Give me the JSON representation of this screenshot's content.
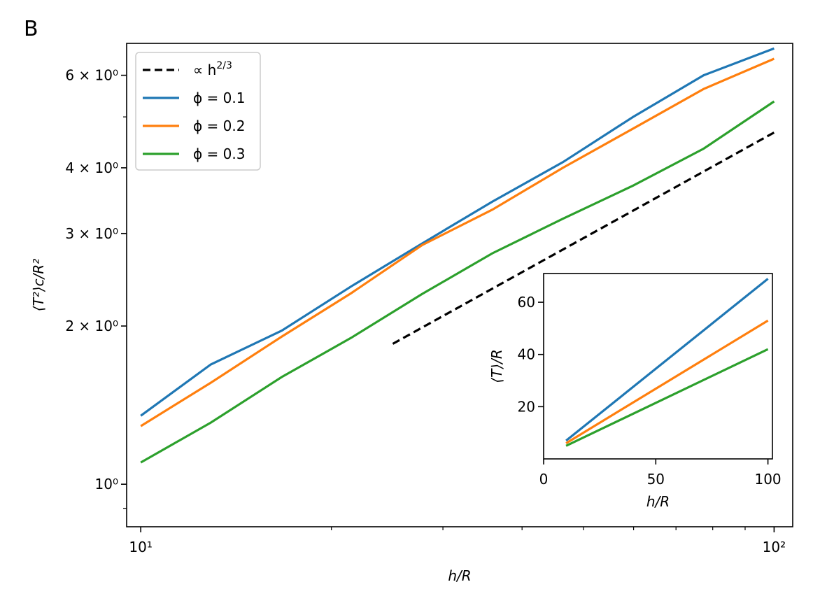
{
  "panel_label": "B",
  "chart_data": [
    {
      "type": "line",
      "title": "",
      "xlabel": "h/R",
      "ylabel": "⟨T²⟩c/R²",
      "xscale": "log",
      "yscale": "log",
      "xlim": [
        9.5,
        107
      ],
      "ylim": [
        0.83,
        6.9
      ],
      "x_ticks": [
        {
          "value": 10,
          "label": "10¹"
        },
        {
          "value": 100,
          "label": "10²"
        }
      ],
      "y_ticks": [
        {
          "value": 1,
          "label": "10⁰"
        },
        {
          "value": 2,
          "label": "2 × 10⁰"
        },
        {
          "value": 3,
          "label": "3 × 10⁰"
        },
        {
          "value": 4,
          "label": "4 × 10⁰"
        },
        {
          "value": 6,
          "label": "6 × 10⁰"
        }
      ],
      "grid": false,
      "legend_position": "upper-left",
      "series": [
        {
          "name": "∝ h^2/3",
          "legend_label": "∝ h",
          "legend_superscript": "2/3",
          "style": "dashed",
          "color": "#000000",
          "x": [
            25,
            100
          ],
          "y": [
            1.85,
            4.67
          ]
        },
        {
          "name": "ϕ = 0.1",
          "color": "#1f77b4",
          "x": [
            10,
            12.9,
            16.7,
            21.5,
            27.8,
            35.9,
            46.4,
            59.9,
            77.4,
            100
          ],
          "y": [
            1.35,
            1.69,
            1.96,
            2.38,
            2.87,
            3.45,
            4.1,
            5.0,
            6.0,
            6.75
          ]
        },
        {
          "name": "ϕ = 0.2",
          "color": "#ff7f0e",
          "x": [
            10,
            12.9,
            16.7,
            21.5,
            27.8,
            35.9,
            46.4,
            59.9,
            77.4,
            100
          ],
          "y": [
            1.29,
            1.56,
            1.91,
            2.31,
            2.85,
            3.33,
            4.0,
            4.75,
            5.65,
            6.45
          ]
        },
        {
          "name": "ϕ = 0.3",
          "color": "#2ca02c",
          "x": [
            10,
            12.9,
            16.7,
            21.5,
            27.8,
            35.9,
            46.4,
            59.9,
            77.4,
            100
          ],
          "y": [
            1.1,
            1.31,
            1.6,
            1.9,
            2.3,
            2.75,
            3.2,
            3.7,
            4.35,
            5.35
          ]
        }
      ]
    },
    {
      "type": "line",
      "title": "",
      "xlabel": "h/R",
      "ylabel": "⟨T⟩/R",
      "xscale": "linear",
      "yscale": "linear",
      "xlim": [
        0,
        102
      ],
      "ylim": [
        0,
        71
      ],
      "x_ticks": [
        0,
        50,
        100
      ],
      "y_ticks": [
        20,
        40,
        60
      ],
      "series": [
        {
          "name": "ϕ = 0.1",
          "color": "#1f77b4",
          "x": [
            10,
            100
          ],
          "y": [
            7,
            69
          ]
        },
        {
          "name": "ϕ = 0.2",
          "color": "#ff7f0e",
          "x": [
            10,
            100
          ],
          "y": [
            6,
            53
          ]
        },
        {
          "name": "ϕ = 0.3",
          "color": "#2ca02c",
          "x": [
            10,
            100
          ],
          "y": [
            5,
            42
          ]
        }
      ]
    }
  ]
}
